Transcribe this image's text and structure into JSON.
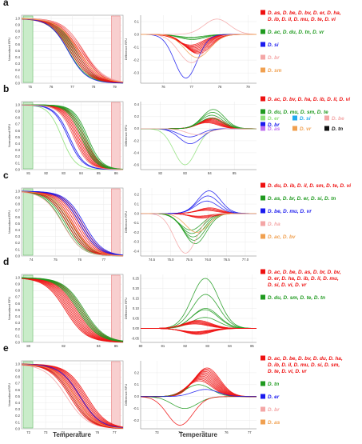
{
  "colors": {
    "red": "#ee1111",
    "green": "#1f9a1f",
    "blue": "#1a1aee",
    "pink": "#f4a6a6",
    "orange": "#f0a050",
    "lightgreen": "#8fe07a",
    "cyan": "#22aaee",
    "purple": "#c070f0",
    "black": "#111111",
    "greenband": "#c9ecc9",
    "redband": "#f8cfcf"
  },
  "xaxis_title": "Temperature",
  "left_ylabel": "Normalized RFU",
  "right_ylabel": "Difference RFU",
  "chart_data": [
    {
      "panel": "a",
      "type": "line",
      "left": {
        "xticks": [
          "75",
          "76",
          "77",
          "78",
          "79"
        ],
        "xrange": [
          74.6,
          79.4
        ],
        "yticks": [
          "0.0",
          "0.1",
          "0.2",
          "0.3",
          "0.4",
          "0.5",
          "0.6",
          "0.7",
          "0.8",
          "0.9",
          "1.0"
        ],
        "ylim": [
          0,
          1.05
        ],
        "curves": [
          {
            "color": "green",
            "tm": 77.0,
            "k": 2.2,
            "count": 5
          },
          {
            "color": "red",
            "tm": 77.2,
            "k": 2.1,
            "count": 8
          },
          {
            "color": "blue",
            "tm": 76.8,
            "k": 2.3,
            "count": 1
          },
          {
            "color": "pink",
            "tm": 77.5,
            "k": 2.0,
            "count": 2
          },
          {
            "color": "orange",
            "tm": 77.3,
            "k": 2.0,
            "count": 1
          }
        ]
      },
      "right": {
        "xticks": [
          "76",
          "77",
          "78",
          "79"
        ],
        "xrange": [
          75.2,
          79.3
        ],
        "yticks": [
          "0.1",
          "0.0",
          "-0.1",
          "-0.2",
          "-0.3"
        ],
        "ylim": [
          -0.38,
          0.15
        ],
        "curves": [
          {
            "color": "green",
            "amp": -0.04,
            "center": 77.0,
            "sd": 0.45,
            "count": 3
          },
          {
            "color": "red",
            "amp": -0.15,
            "center": 77.1,
            "sd": 0.45,
            "count": 10
          },
          {
            "color": "blue",
            "amp": -0.34,
            "center": 76.8,
            "sd": 0.4,
            "count": 1
          },
          {
            "color": "pink",
            "amp": 0.12,
            "center": 77.9,
            "sd": 0.45,
            "count": 1
          },
          {
            "color": "pink",
            "amp": -0.22,
            "center": 77.0,
            "sd": 0.45,
            "count": 1
          },
          {
            "color": "orange",
            "amp": -0.18,
            "center": 77.2,
            "sd": 0.45,
            "count": 1
          }
        ]
      },
      "legend": [
        {
          "color": "red",
          "lines": [
            "D. as, D. be, D. bv, D. er, D. ha,",
            "D. ib, D. il, D. mu, D. te, D. vi"
          ]
        },
        {
          "color": "green",
          "lines": [
            "D. ac, D. du, D. tn, D. vr"
          ]
        },
        {
          "color": "blue",
          "lines": [
            "D. si"
          ]
        },
        {
          "color": "pink",
          "lines": [
            "D. br"
          ]
        },
        {
          "color": "orange",
          "lines": [
            "D. sm"
          ]
        }
      ]
    },
    {
      "panel": "b",
      "type": "line",
      "left": {
        "xticks": [
          "81",
          "82",
          "83",
          "84",
          "85",
          "86"
        ],
        "xrange": [
          80.6,
          86.4
        ],
        "yticks": [
          "0.0",
          "0.1",
          "0.2",
          "0.3",
          "0.4",
          "0.5",
          "0.6",
          "0.7",
          "0.8",
          "0.9",
          "1.0"
        ],
        "ylim": [
          0,
          1.05
        ],
        "curves": [
          {
            "color": "lightgreen",
            "tm": 82.9,
            "k": 2.6,
            "count": 1
          },
          {
            "color": "blue",
            "tm": 83.3,
            "k": 2.4,
            "count": 2
          },
          {
            "color": "red",
            "tm": 83.9,
            "k": 2.4,
            "count": 8
          },
          {
            "color": "green",
            "tm": 84.2,
            "k": 2.5,
            "count": 5
          },
          {
            "color": "pink",
            "tm": 83.6,
            "k": 2.4,
            "count": 1
          }
        ]
      },
      "right": {
        "xticks": [
          "82",
          "83",
          "84",
          "85"
        ],
        "xrange": [
          81.2,
          85.9
        ],
        "yticks": [
          "0.4",
          "0.2",
          "0.0",
          "-0.2",
          "-0.4",
          "-0.6"
        ],
        "ylim": [
          -0.68,
          0.45
        ],
        "curves": [
          {
            "color": "lightgreen",
            "amp": -0.6,
            "center": 83.0,
            "sd": 0.45,
            "count": 1
          },
          {
            "color": "blue",
            "amp": -0.25,
            "center": 83.2,
            "sd": 0.45,
            "count": 2
          },
          {
            "color": "red",
            "amp": 0.18,
            "center": 84.0,
            "sd": 0.45,
            "count": 8
          },
          {
            "color": "green",
            "amp": 0.32,
            "center": 84.1,
            "sd": 0.45,
            "count": 4
          },
          {
            "color": "pink",
            "amp": -0.1,
            "center": 83.5,
            "sd": 0.45,
            "count": 1
          }
        ]
      },
      "legend": [
        {
          "color": "red",
          "lines": [
            "D. ac, D. bv, D. ha, D. ib, D. il, D. vi"
          ]
        },
        {
          "color": "green",
          "lines": [
            "D. du, D. mu, D. sm, D. te"
          ]
        },
        {
          "color": "blue",
          "lines": [
            "D. br"
          ]
        },
        {
          "color": "lightgreen",
          "lines": [
            "D. er"
          ]
        },
        {
          "color": "cyan",
          "lines": [
            "D. si"
          ]
        },
        {
          "color": "pink",
          "lines": [
            "D. be"
          ]
        },
        {
          "color": "purple",
          "lines": [
            "D. as"
          ]
        },
        {
          "color": "orange",
          "lines": [
            "D. vr"
          ]
        },
        {
          "color": "black",
          "lines": [
            "D. tn"
          ]
        }
      ]
    },
    {
      "panel": "c",
      "type": "line",
      "left": {
        "xticks": [
          "74",
          "75",
          "76",
          "77"
        ],
        "xrange": [
          73.6,
          77.8
        ],
        "yticks": [
          "0.0",
          "0.1",
          "0.2",
          "0.3",
          "0.4",
          "0.5",
          "0.6",
          "0.7",
          "0.8",
          "0.9",
          "1.0"
        ],
        "ylim": [
          0,
          1.05
        ],
        "curves": [
          {
            "color": "green",
            "tm": 75.5,
            "k": 2.6,
            "count": 5
          },
          {
            "color": "red",
            "tm": 75.8,
            "k": 2.6,
            "count": 8
          },
          {
            "color": "blue",
            "tm": 76.1,
            "k": 2.6,
            "count": 3
          },
          {
            "color": "pink",
            "tm": 75.3,
            "k": 2.5,
            "count": 1
          },
          {
            "color": "orange",
            "tm": 75.7,
            "k": 2.5,
            "count": 1
          }
        ]
      },
      "right": {
        "xticks": [
          "74.5",
          "75.0",
          "75.5",
          "76.0",
          "76.5",
          "77.0"
        ],
        "xrange": [
          74.2,
          77.3
        ],
        "yticks": [
          "0.2",
          "0.1",
          "0.0",
          "-0.1",
          "-0.2",
          "-0.3",
          "-0.4"
        ],
        "ylim": [
          -0.45,
          0.27
        ],
        "curves": [
          {
            "color": "green",
            "amp": -0.32,
            "center": 75.6,
            "sd": 0.3,
            "count": 5
          },
          {
            "color": "red",
            "amp": -0.05,
            "center": 75.8,
            "sd": 0.3,
            "count": 4
          },
          {
            "color": "red",
            "amp": 0.06,
            "center": 76.0,
            "sd": 0.3,
            "count": 4
          },
          {
            "color": "blue",
            "amp": 0.24,
            "center": 76.0,
            "sd": 0.3,
            "count": 3
          },
          {
            "color": "pink",
            "amp": -0.42,
            "center": 75.4,
            "sd": 0.3,
            "count": 1
          },
          {
            "color": "orange",
            "amp": -0.2,
            "center": 75.7,
            "sd": 0.3,
            "count": 1
          }
        ]
      },
      "legend": [
        {
          "color": "red",
          "lines": [
            "D. du, D. ib, D. il, D. sm, D. te, D. vi"
          ]
        },
        {
          "color": "green",
          "lines": [
            "D. as, D. br, D. er, D. si, D. tn"
          ]
        },
        {
          "color": "blue",
          "lines": [
            "D. be, D. mu, D. vr"
          ]
        },
        {
          "color": "pink",
          "lines": [
            "D. ha"
          ]
        },
        {
          "color": "orange",
          "lines": [
            "D. ac, D. bv"
          ]
        }
      ]
    },
    {
      "panel": "d",
      "type": "line",
      "left": {
        "xticks": [
          "80",
          "82",
          "84",
          "85"
        ],
        "xrange": [
          79.6,
          85.4
        ],
        "yticks": [
          "0.0",
          "0.1",
          "0.2",
          "0.3",
          "0.4",
          "0.5",
          "0.6",
          "0.7",
          "0.8",
          "0.9",
          "1.0"
        ],
        "ylim": [
          0,
          1.05
        ],
        "curves": [
          {
            "color": "red",
            "tm": 82.6,
            "k": 1.7,
            "count": 12
          },
          {
            "color": "green",
            "tm": 83.0,
            "k": 1.7,
            "count": 5
          }
        ]
      },
      "right": {
        "xticks": [
          "80",
          "81",
          "82",
          "83",
          "84",
          "85"
        ],
        "xrange": [
          80.0,
          85.2
        ],
        "yticks": [
          "0.25",
          "0.20",
          "0.15",
          "0.10",
          "0.05",
          "0.00",
          "-0.05"
        ],
        "ylim": [
          -0.07,
          0.27
        ],
        "curves": [
          {
            "color": "green",
            "amp": 0.25,
            "center": 82.9,
            "sd": 0.6,
            "count": 1
          },
          {
            "color": "green",
            "amp": 0.17,
            "center": 82.9,
            "sd": 0.6,
            "count": 2
          },
          {
            "color": "green",
            "amp": 0.1,
            "center": 82.9,
            "sd": 0.6,
            "count": 2
          },
          {
            "color": "red",
            "amp": 0.04,
            "center": 82.5,
            "sd": 0.6,
            "count": 6
          },
          {
            "color": "red",
            "amp": -0.03,
            "center": 82.5,
            "sd": 0.6,
            "count": 6
          }
        ]
      },
      "legend": [
        {
          "color": "red",
          "lines": [
            "D. ac, D. be, D. as, D. br, D. bv,",
            "D. er, D. ha, D. ib, D. il, D. mu,",
            "D. si, D. vi, D. vr"
          ]
        },
        {
          "color": "green",
          "lines": [
            "D. du, D. sm, D. te, D. tn"
          ]
        }
      ]
    },
    {
      "panel": "e",
      "type": "line",
      "left": {
        "xticks": [
          "72",
          "73",
          "74",
          "75",
          "76",
          "77"
        ],
        "xrange": [
          71.6,
          77.5
        ],
        "yticks": [
          "0.0",
          "0.1",
          "0.2",
          "0.3",
          "0.4",
          "0.5",
          "0.6",
          "0.7",
          "0.8",
          "0.9",
          "1.0"
        ],
        "ylim": [
          0,
          1.05
        ],
        "curves": [
          {
            "color": "pink",
            "tm": 74.2,
            "k": 1.6,
            "count": 1
          },
          {
            "color": "green",
            "tm": 74.5,
            "k": 1.7,
            "count": 1
          },
          {
            "color": "red",
            "tm": 74.9,
            "k": 1.7,
            "count": 12
          },
          {
            "color": "blue",
            "tm": 75.0,
            "k": 1.7,
            "count": 1
          },
          {
            "color": "orange",
            "tm": 74.7,
            "k": 1.7,
            "count": 1
          }
        ]
      },
      "right": {
        "xticks": [
          "73",
          "74",
          "75",
          "76",
          "77"
        ],
        "xrange": [
          72.3,
          77.3
        ],
        "yticks": [
          "0.2",
          "0.1",
          "0.0",
          "-0.1",
          "-0.2"
        ],
        "ylim": [
          -0.27,
          0.3
        ],
        "curves": [
          {
            "color": "red",
            "amp": 0.24,
            "center": 75.0,
            "sd": 0.55,
            "count": 12
          },
          {
            "color": "green",
            "amp": 0.1,
            "center": 74.8,
            "sd": 0.55,
            "count": 1
          },
          {
            "color": "green",
            "amp": -0.1,
            "center": 74.2,
            "sd": 0.55,
            "count": 1
          },
          {
            "color": "red",
            "amp": -0.24,
            "center": 74.0,
            "sd": 0.55,
            "count": 1
          },
          {
            "color": "blue",
            "amp": 0.06,
            "center": 75.1,
            "sd": 0.55,
            "count": 1
          }
        ]
      },
      "legend": [
        {
          "color": "red",
          "lines": [
            "D. ac, D. be, D. bv, D. du, D. ha,",
            "D. ib, D. il, D. mu, D. si, D. sm,",
            "D. te, D. vi, D. vr"
          ]
        },
        {
          "color": "green",
          "lines": [
            "D. tn"
          ]
        },
        {
          "color": "blue",
          "lines": [
            "D. er"
          ]
        },
        {
          "color": "pink",
          "lines": [
            "D. br"
          ]
        },
        {
          "color": "orange",
          "lines": [
            "D. as"
          ]
        }
      ]
    }
  ]
}
